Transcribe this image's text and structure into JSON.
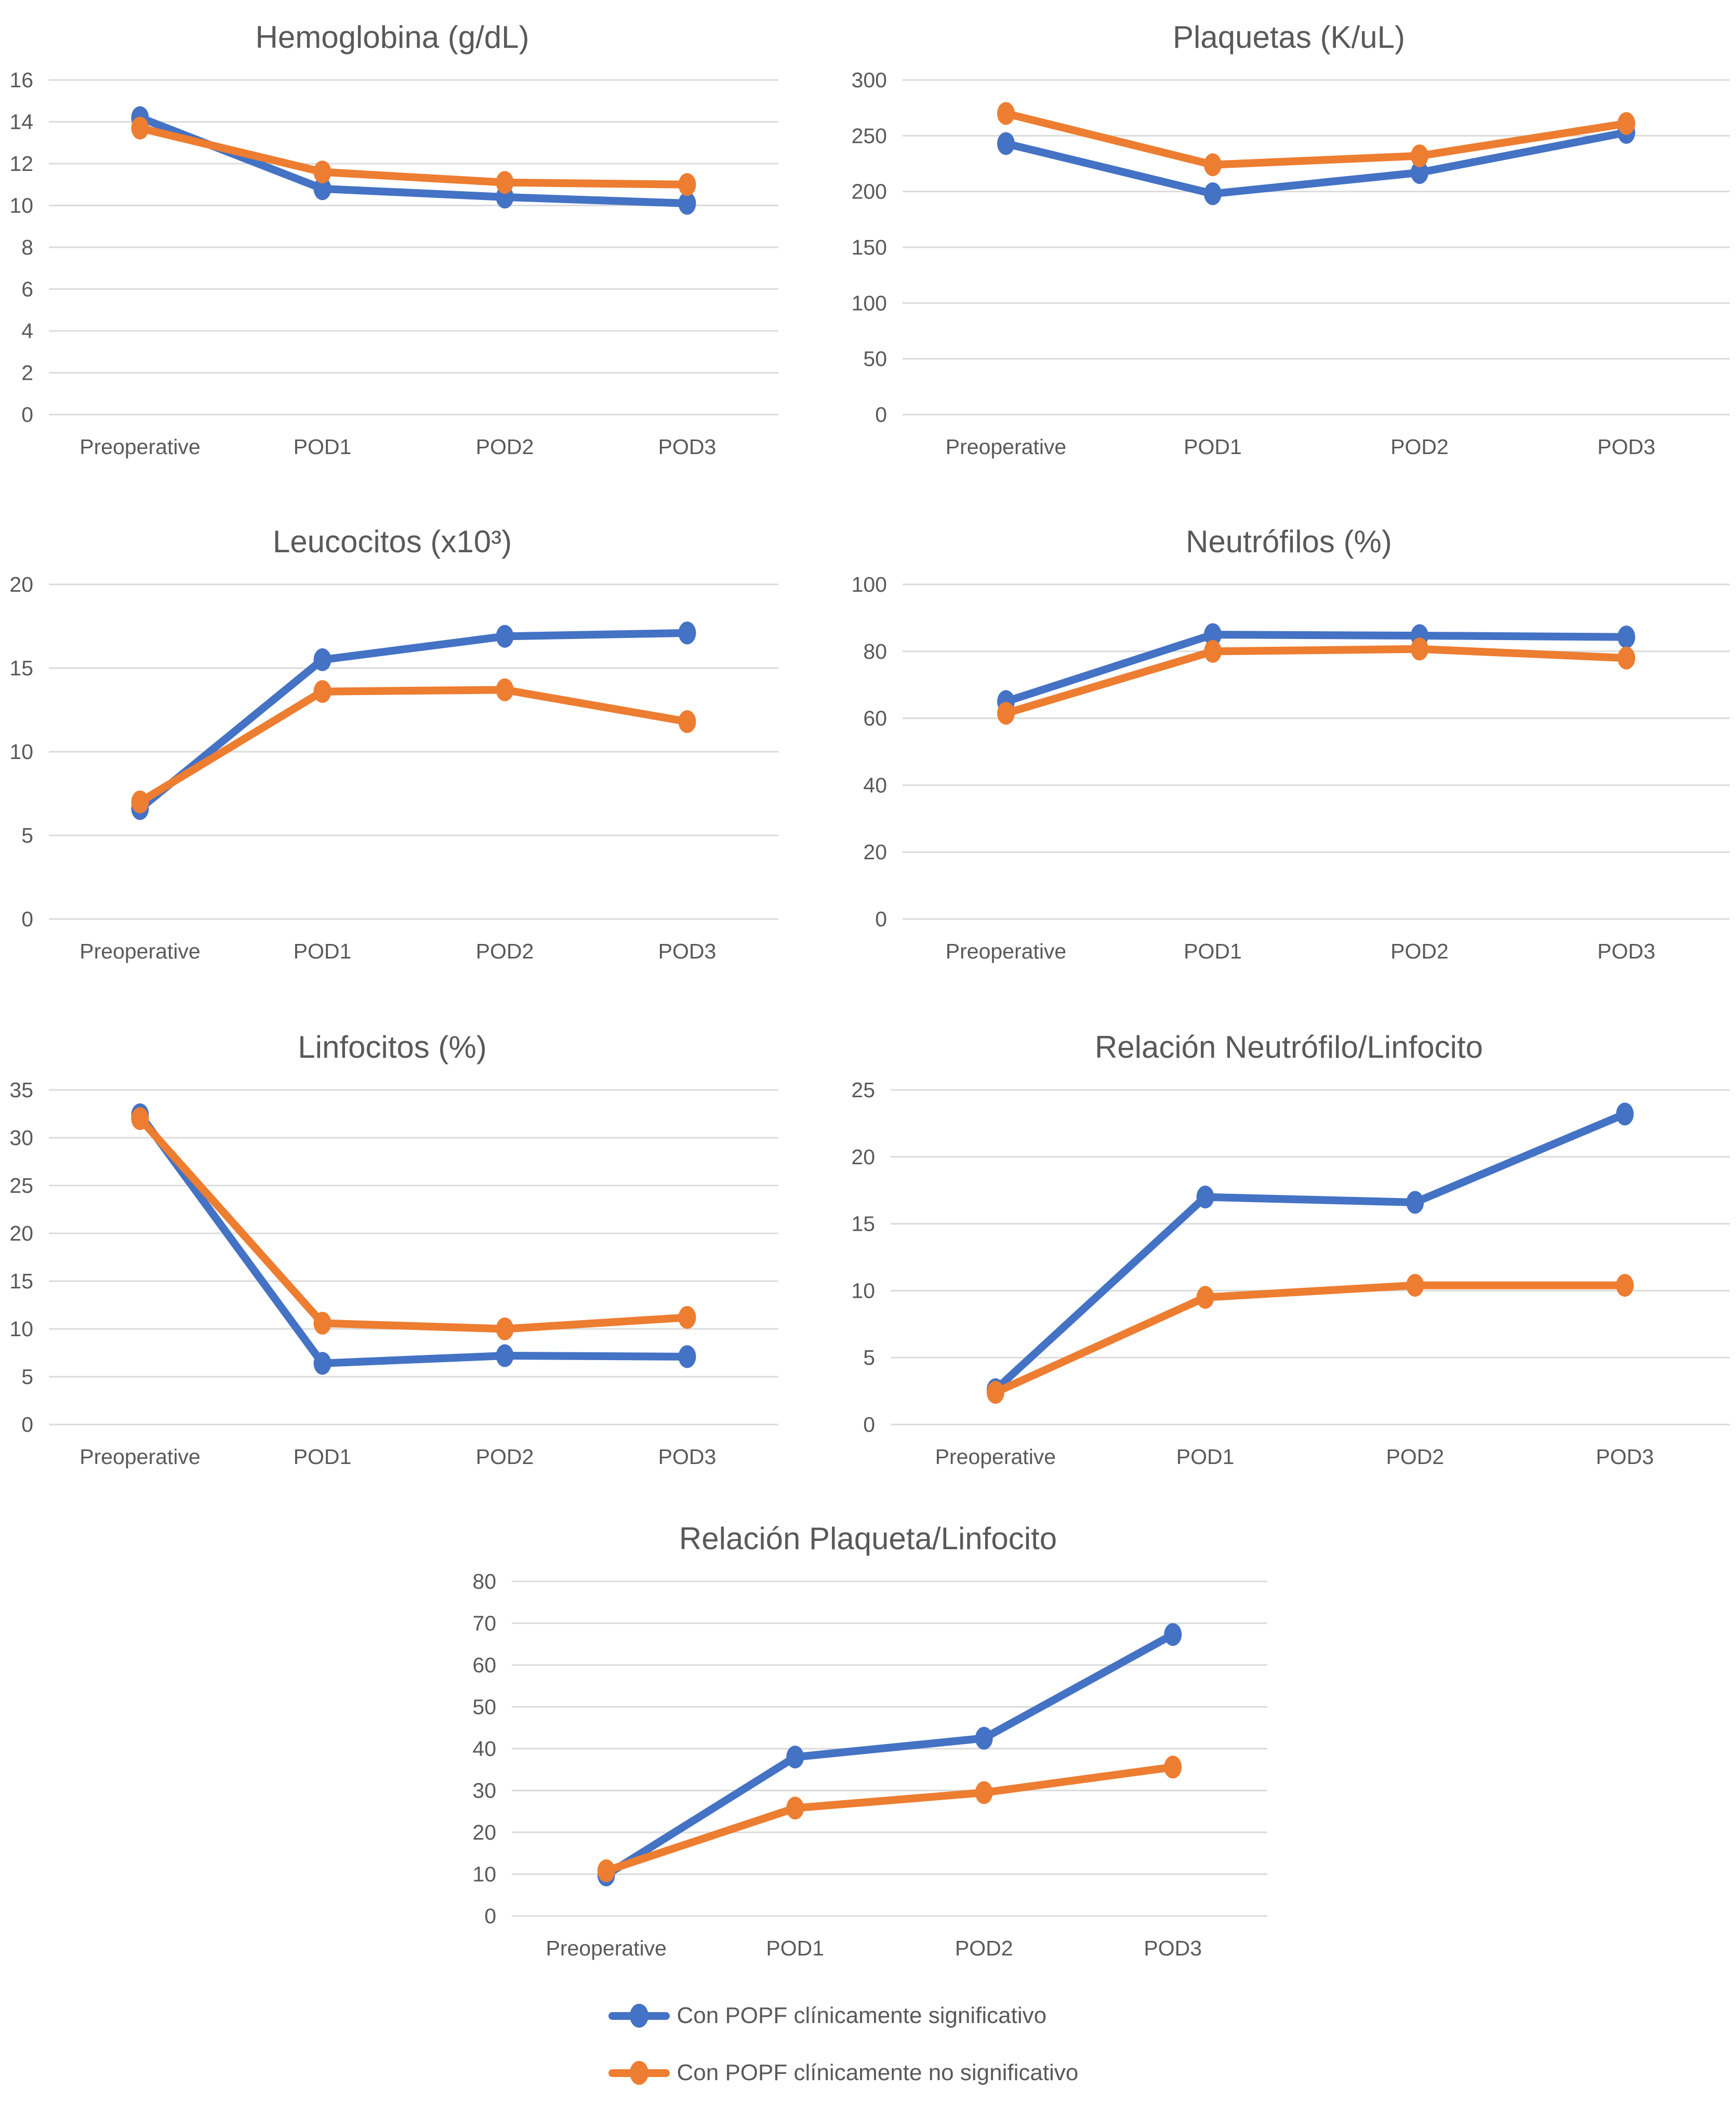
{
  "figure": {
    "background": "#ffffff"
  },
  "colors": {
    "series_significativo": "#4472C4",
    "series_no_significativo": "#ED7D31",
    "gridline": "#DBDBDB",
    "axis_text": "#595959",
    "title_text": "#595959"
  },
  "legend": {
    "items": [
      {
        "label": "Con POPF clínicamente significativo",
        "color": "#4472C4"
      },
      {
        "label": "Con POPF clínicamente no significativo",
        "color": "#ED7D31"
      }
    ]
  },
  "chart_data": [
    {
      "type": "line",
      "title": "Hemoglobina (g/dL)",
      "categories": [
        "Preoperative",
        "POD1",
        "POD2",
        "POD3"
      ],
      "ylim": [
        0,
        16
      ],
      "ytick_step": 2,
      "grid": true,
      "legend_position": "bottom-shared",
      "series": [
        {
          "name": "Con POPF clínicamente significativo",
          "color": "#4472C4",
          "values": [
            14.2,
            10.8,
            10.4,
            10.1
          ]
        },
        {
          "name": "Con POPF clínicamente no significativo",
          "color": "#ED7D31",
          "values": [
            13.7,
            11.6,
            11.1,
            11.0
          ]
        }
      ]
    },
    {
      "type": "line",
      "title": "Plaquetas (K/uL)",
      "categories": [
        "Preoperative",
        "POD1",
        "POD2",
        "POD3"
      ],
      "ylim": [
        0,
        300
      ],
      "ytick_step": 50,
      "grid": true,
      "legend_position": "bottom-shared",
      "series": [
        {
          "name": "Con POPF clínicamente significativo",
          "color": "#4472C4",
          "values": [
            243,
            198,
            217,
            253
          ]
        },
        {
          "name": "Con POPF clínicamente no significativo",
          "color": "#ED7D31",
          "values": [
            270,
            224,
            232,
            261
          ]
        }
      ]
    },
    {
      "type": "line",
      "title": "Leucocitos (x10³)",
      "categories": [
        "Preoperative",
        "POD1",
        "POD2",
        "POD3"
      ],
      "ylim": [
        0,
        20
      ],
      "ytick_step": 5,
      "grid": true,
      "legend_position": "bottom-shared",
      "series": [
        {
          "name": "Con POPF clínicamente significativo",
          "color": "#4472C4",
          "values": [
            6.6,
            15.5,
            16.9,
            17.1
          ]
        },
        {
          "name": "Con POPF clínicamente no significativo",
          "color": "#ED7D31",
          "values": [
            7.0,
            13.6,
            13.7,
            11.8
          ]
        }
      ]
    },
    {
      "type": "line",
      "title": "Neutrófilos (%)",
      "categories": [
        "Preoperative",
        "POD1",
        "POD2",
        "POD3"
      ],
      "ylim": [
        0,
        100
      ],
      "ytick_step": 20,
      "grid": true,
      "legend_position": "bottom-shared",
      "series": [
        {
          "name": "Con POPF clínicamente significativo",
          "color": "#4472C4",
          "values": [
            65,
            85,
            84.7,
            84.3
          ]
        },
        {
          "name": "Con POPF clínicamente no significativo",
          "color": "#ED7D31",
          "values": [
            61.5,
            80,
            80.7,
            78
          ]
        }
      ]
    },
    {
      "type": "line",
      "title": "Linfocitos (%)",
      "categories": [
        "Preoperative",
        "POD1",
        "POD2",
        "POD3"
      ],
      "ylim": [
        0,
        35
      ],
      "ytick_step": 5,
      "grid": true,
      "legend_position": "bottom-shared",
      "series": [
        {
          "name": "Con POPF clínicamente significativo",
          "color": "#4472C4",
          "values": [
            32.4,
            6.4,
            7.2,
            7.1
          ]
        },
        {
          "name": "Con POPF clínicamente no significativo",
          "color": "#ED7D31",
          "values": [
            32.0,
            10.6,
            10.0,
            11.2
          ]
        }
      ]
    },
    {
      "type": "line",
      "title": "Relación Neutrófilo/Linfocito",
      "categories": [
        "Preoperative",
        "POD1",
        "POD2",
        "POD3"
      ],
      "ylim": [
        0,
        25
      ],
      "ytick_step": 5,
      "grid": true,
      "legend_position": "bottom-shared",
      "series": [
        {
          "name": "Con POPF clínicamente significativo",
          "color": "#4472C4",
          "values": [
            2.6,
            17.0,
            16.6,
            23.2
          ]
        },
        {
          "name": "Con POPF clínicamente no significativo",
          "color": "#ED7D31",
          "values": [
            2.4,
            9.5,
            10.4,
            10.4
          ]
        }
      ]
    },
    {
      "type": "line",
      "title": "Relación Plaqueta/Linfocito",
      "categories": [
        "Preoperative",
        "POD1",
        "POD2",
        "POD3"
      ],
      "ylim": [
        0,
        80
      ],
      "ytick_step": 10,
      "grid": true,
      "legend_position": "bottom-shared",
      "series": [
        {
          "name": "Con POPF clínicamente significativo",
          "color": "#4472C4",
          "values": [
            9.8,
            38.0,
            42.5,
            67.3
          ]
        },
        {
          "name": "Con POPF clínicamente no significativo",
          "color": "#ED7D31",
          "values": [
            10.8,
            25.8,
            29.5,
            35.6
          ]
        }
      ]
    }
  ]
}
